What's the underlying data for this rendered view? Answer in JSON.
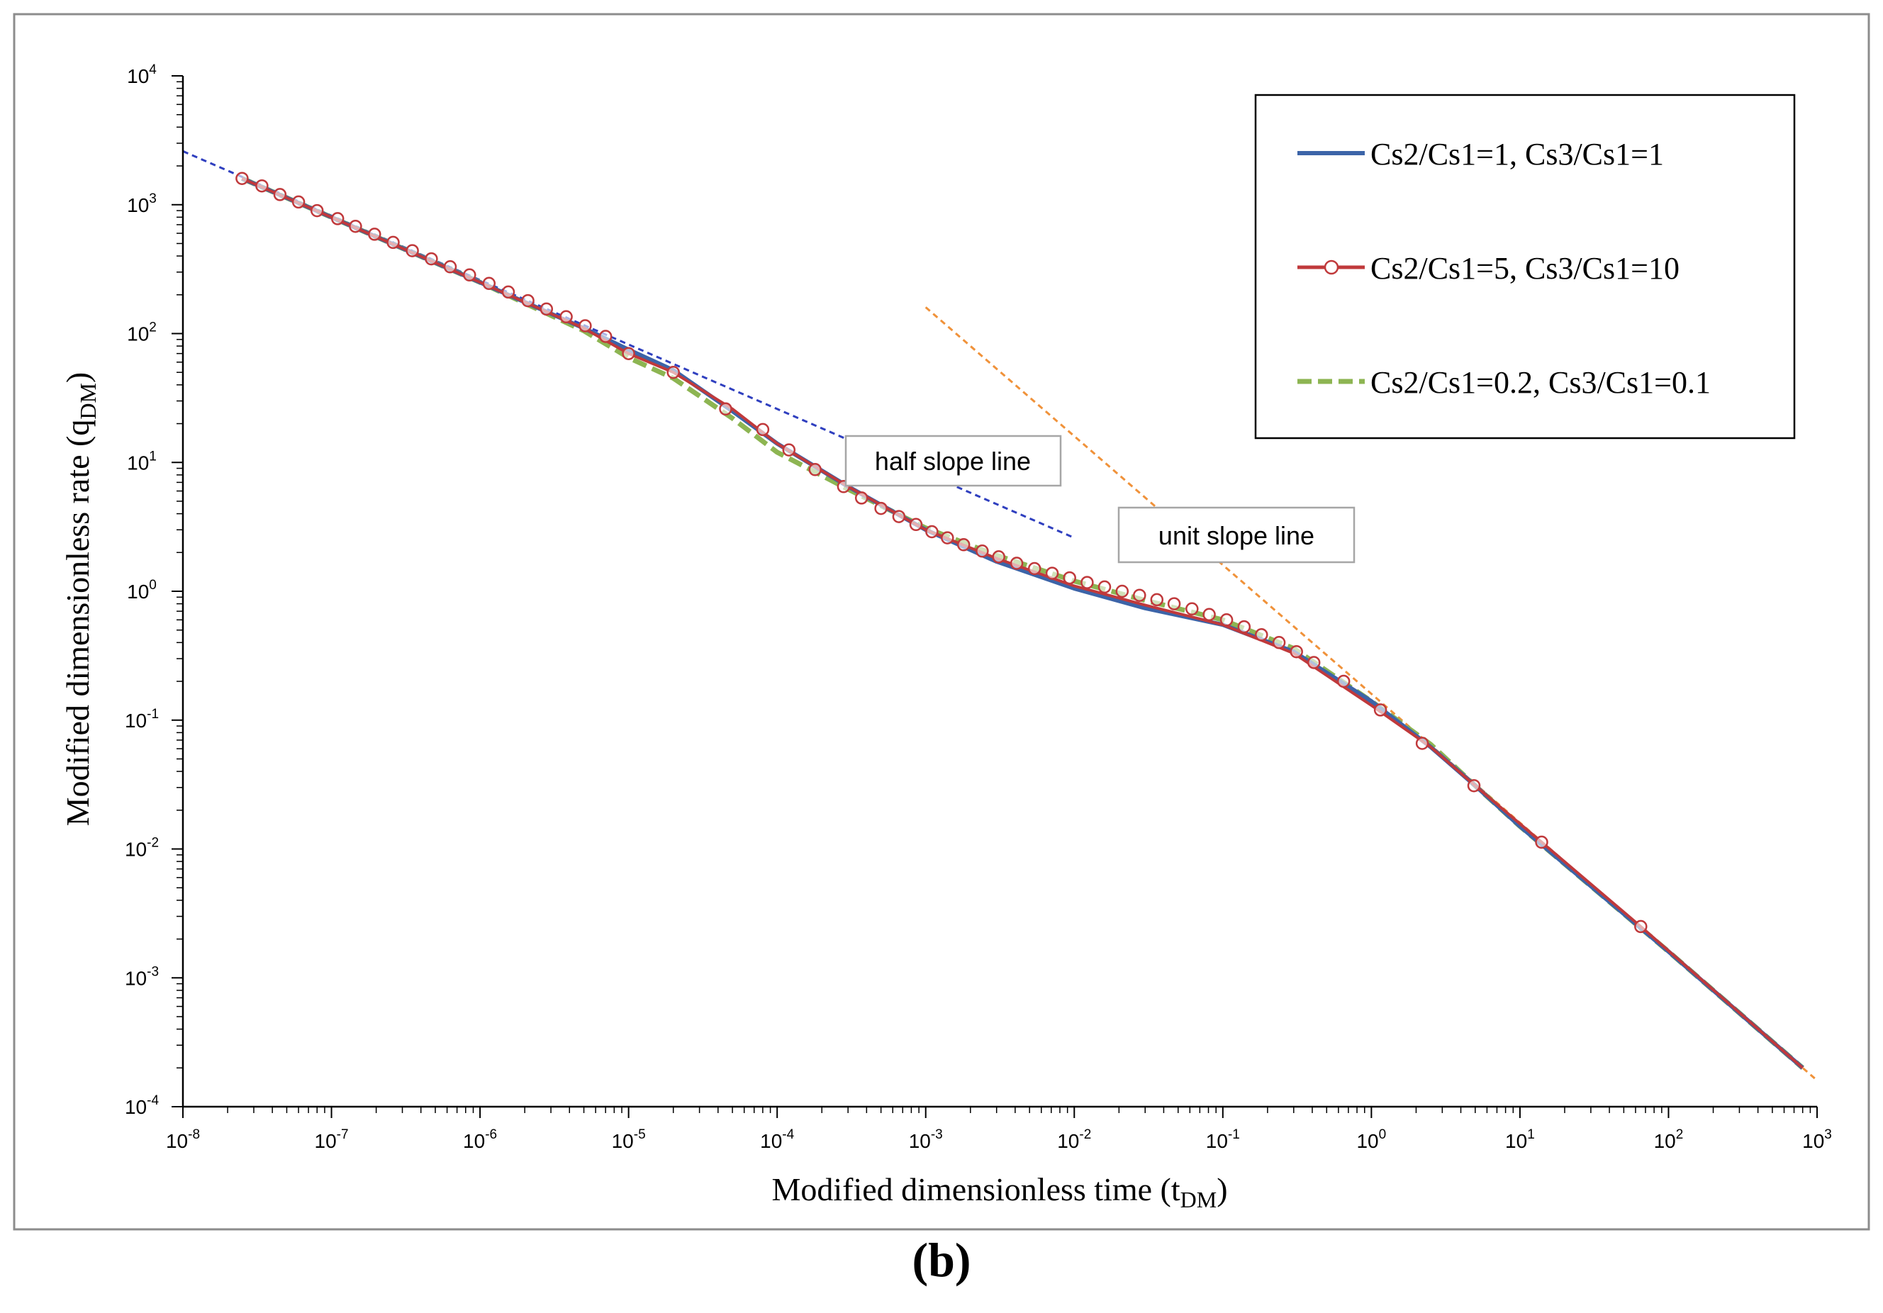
{
  "chart_data": {
    "type": "line",
    "log_x": true,
    "log_y": true,
    "xlabel": "Modified dimensionless time (t",
    "xlabel_sub": "DM",
    "xlabel_end": ")",
    "ylabel": "Modified dimensionless rate (q",
    "ylabel_sub": "DM",
    "ylabel_end": ")",
    "xlim": [
      1e-08,
      1000
    ],
    "ylim": [
      0.0001,
      10000
    ],
    "x_ticks": [
      {
        "base": "10",
        "exp": "-8",
        "value": 1e-08
      },
      {
        "base": "10",
        "exp": "-7",
        "value": 1e-07
      },
      {
        "base": "10",
        "exp": "-6",
        "value": 1e-06
      },
      {
        "base": "10",
        "exp": "-5",
        "value": 1e-05
      },
      {
        "base": "10",
        "exp": "-4",
        "value": 0.0001
      },
      {
        "base": "10",
        "exp": "-3",
        "value": 0.001
      },
      {
        "base": "10",
        "exp": "-2",
        "value": 0.01
      },
      {
        "base": "10",
        "exp": "-1",
        "value": 0.1
      },
      {
        "base": "10",
        "exp": "0",
        "value": 1
      },
      {
        "base": "10",
        "exp": "1",
        "value": 10
      },
      {
        "base": "10",
        "exp": "2",
        "value": 100
      },
      {
        "base": "10",
        "exp": "3",
        "value": 1000
      }
    ],
    "y_ticks": [
      {
        "base": "10",
        "exp": "-4",
        "value": 0.0001
      },
      {
        "base": "10",
        "exp": "-3",
        "value": 0.001
      },
      {
        "base": "10",
        "exp": "-2",
        "value": 0.01
      },
      {
        "base": "10",
        "exp": "-1",
        "value": 0.1
      },
      {
        "base": "10",
        "exp": "0",
        "value": 1
      },
      {
        "base": "10",
        "exp": "1",
        "value": 10
      },
      {
        "base": "10",
        "exp": "2",
        "value": 100
      },
      {
        "base": "10",
        "exp": "3",
        "value": 1000
      },
      {
        "base": "10",
        "exp": "4",
        "value": 10000
      }
    ],
    "series": [
      {
        "name": "Cs2/Cs1=1, Cs3/Cs1=1",
        "color": "#3c64a8",
        "style": "solid",
        "points": [
          [
            2.5e-08,
            1600
          ],
          [
            1e-07,
            800
          ],
          [
            1e-06,
            250
          ],
          [
            5e-06,
            110
          ],
          [
            1e-05,
            75
          ],
          [
            2e-05,
            52
          ],
          [
            5e-05,
            25
          ],
          [
            0.0001,
            14
          ],
          [
            0.0003,
            6.5
          ],
          [
            0.001,
            3
          ],
          [
            0.003,
            1.7
          ],
          [
            0.01,
            1.05
          ],
          [
            0.03,
            0.74
          ],
          [
            0.1,
            0.55
          ],
          [
            0.3,
            0.34
          ],
          [
            1,
            0.14
          ],
          [
            2.5,
            0.062
          ],
          [
            5,
            0.031
          ],
          [
            10,
            0.015
          ],
          [
            100,
            0.0016
          ],
          [
            800,
            0.0002
          ]
        ]
      },
      {
        "name": "Cs2/Cs1=5, Cs3/Cs1=10",
        "color": "#c0393b",
        "style": "solid-markers",
        "points": [
          [
            2.5e-08,
            1600
          ],
          [
            1e-07,
            800
          ],
          [
            1e-06,
            250
          ],
          [
            5e-06,
            110
          ],
          [
            1e-05,
            70
          ],
          [
            2e-05,
            50
          ],
          [
            5e-05,
            26
          ],
          [
            0.0001,
            14
          ],
          [
            0.0003,
            6.5
          ],
          [
            0.001,
            3
          ],
          [
            0.003,
            1.8
          ],
          [
            0.01,
            1.1
          ],
          [
            0.03,
            0.78
          ],
          [
            0.1,
            0.55
          ],
          [
            0.3,
            0.33
          ],
          [
            1,
            0.13
          ],
          [
            2.5,
            0.062
          ],
          [
            5,
            0.031
          ],
          [
            14,
            0.0113
          ],
          [
            65,
            0.0025
          ],
          [
            800,
            0.0002
          ]
        ],
        "markers": [
          [
            2.5e-08,
            1600
          ],
          [
            3.4e-08,
            1400
          ],
          [
            4.5e-08,
            1200
          ],
          [
            6e-08,
            1050
          ],
          [
            8e-08,
            900
          ],
          [
            1.1e-07,
            780
          ],
          [
            1.45e-07,
            680
          ],
          [
            1.95e-07,
            590
          ],
          [
            2.6e-07,
            510
          ],
          [
            3.5e-07,
            440
          ],
          [
            4.7e-07,
            380
          ],
          [
            6.3e-07,
            330
          ],
          [
            8.5e-07,
            285
          ],
          [
            1.15e-06,
            245
          ],
          [
            1.55e-06,
            210
          ],
          [
            2.1e-06,
            180
          ],
          [
            2.8e-06,
            155
          ],
          [
            3.8e-06,
            135
          ],
          [
            5.1e-06,
            115
          ],
          [
            7e-06,
            95
          ],
          [
            1e-05,
            70
          ],
          [
            2e-05,
            50
          ],
          [
            4.5e-05,
            26
          ],
          [
            8e-05,
            18
          ],
          [
            0.00012,
            12.5
          ],
          [
            0.00018,
            8.8
          ],
          [
            0.00028,
            6.5
          ],
          [
            0.00037,
            5.3
          ],
          [
            0.0005,
            4.4
          ],
          [
            0.00066,
            3.8
          ],
          [
            0.00086,
            3.3
          ],
          [
            0.0011,
            2.9
          ],
          [
            0.0014,
            2.6
          ],
          [
            0.0018,
            2.3
          ],
          [
            0.0024,
            2.05
          ],
          [
            0.0031,
            1.85
          ],
          [
            0.0041,
            1.65
          ],
          [
            0.0054,
            1.5
          ],
          [
            0.0071,
            1.38
          ],
          [
            0.0093,
            1.27
          ],
          [
            0.0122,
            1.17
          ],
          [
            0.016,
            1.08
          ],
          [
            0.021,
            1.0
          ],
          [
            0.0275,
            0.93
          ],
          [
            0.036,
            0.86
          ],
          [
            0.047,
            0.8
          ],
          [
            0.062,
            0.73
          ],
          [
            0.081,
            0.66
          ],
          [
            0.106,
            0.6
          ],
          [
            0.139,
            0.53
          ],
          [
            0.182,
            0.46
          ],
          [
            0.239,
            0.4
          ],
          [
            0.313,
            0.34
          ],
          [
            0.41,
            0.28
          ],
          [
            0.65,
            0.2
          ],
          [
            1.15,
            0.12
          ],
          [
            2.2,
            0.066
          ],
          [
            4.9,
            0.031
          ],
          [
            14,
            0.0113
          ],
          [
            65,
            0.0025
          ]
        ]
      },
      {
        "name": "Cs2/Cs1=0.2, Cs3/Cs1=0.1",
        "color": "#8db552",
        "style": "dashed",
        "points": [
          [
            2.5e-08,
            1600
          ],
          [
            1e-07,
            800
          ],
          [
            1e-06,
            250
          ],
          [
            5e-06,
            105
          ],
          [
            1e-05,
            65
          ],
          [
            2e-05,
            45
          ],
          [
            5e-05,
            22
          ],
          [
            0.0001,
            12
          ],
          [
            0.0003,
            6.2
          ],
          [
            0.001,
            3.1
          ],
          [
            0.003,
            1.9
          ],
          [
            0.01,
            1.2
          ],
          [
            0.03,
            0.85
          ],
          [
            0.1,
            0.6
          ],
          [
            0.3,
            0.36
          ],
          [
            1,
            0.14
          ],
          [
            2.5,
            0.065
          ],
          [
            5,
            0.031
          ],
          [
            10,
            0.015
          ],
          [
            100,
            0.0016
          ],
          [
            800,
            0.0002
          ]
        ]
      }
    ],
    "reference_lines": [
      {
        "name": "half slope line",
        "color": "#2f3fbf",
        "points": [
          [
            1e-08,
            2600
          ],
          [
            0.01,
            2.6
          ]
        ]
      },
      {
        "name": "unit slope line",
        "color": "#f0923a",
        "points": [
          [
            0.001,
            160
          ],
          [
            1000,
            0.00016
          ]
        ]
      }
    ],
    "annotations": [
      {
        "text": "half slope line"
      },
      {
        "text": "unit slope line"
      }
    ],
    "legend_position": "top-right"
  },
  "caption": "(b)"
}
